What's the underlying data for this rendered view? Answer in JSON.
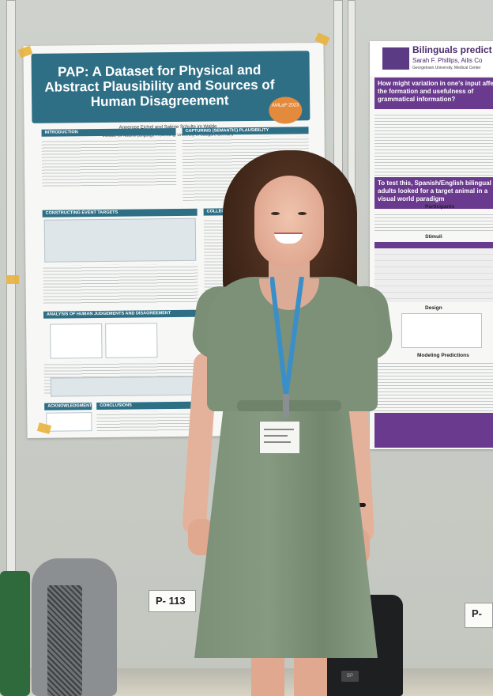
{
  "photo": {
    "left_poster": {
      "title": "PAP: A Dataset for Physical and Abstract Plausibility and Sources of Human Disagreement",
      "authors": "Annerose Eichel and Sabine Schulte im Walde",
      "institution": "Institute for Natural Language Processing, University of Stuttgart, Germany",
      "badge": "AMLaP 2023",
      "sections": {
        "introduction": "INTRODUCTION",
        "capturing": "CAPTURING (SEMANTIC) PLAUSIBILITY",
        "event_targets": "CONSTRUCTING EVENT TARGETS",
        "collecting": "COLLECTING HUMAN",
        "analysis": "ANALYSIS OF HUMAN JUDGEMENTS AND DISAGREEMENT",
        "acknowledgments": "ACKNOWLEDGMENTS",
        "conclusions": "CONCLUSIONS"
      }
    },
    "right_poster": {
      "title": "Bilinguals predict w",
      "authors": "Sarah F. Phillips, Ailis Co",
      "institution": "Georgetown University, Medical Center",
      "question": "How might variation in one's input affect the formation and usefulness of grammatical information?",
      "test_box": "To test this, Spanish/English bilingual adults looked for a target animal in a visual world paradigm",
      "participants_heading": "Participants",
      "stimuli_heading": "Stimuli",
      "design_heading": "Design",
      "modeling_heading": "Modeling Predictions"
    },
    "label_cards": [
      "P- 113",
      "P-"
    ],
    "bag_tag": "BP"
  },
  "colors": {
    "left_poster_accent": "#2f6f86",
    "right_poster_accent": "#6a3a8e",
    "dress": "#7d9178",
    "lanyard": "#3a8fc8"
  }
}
